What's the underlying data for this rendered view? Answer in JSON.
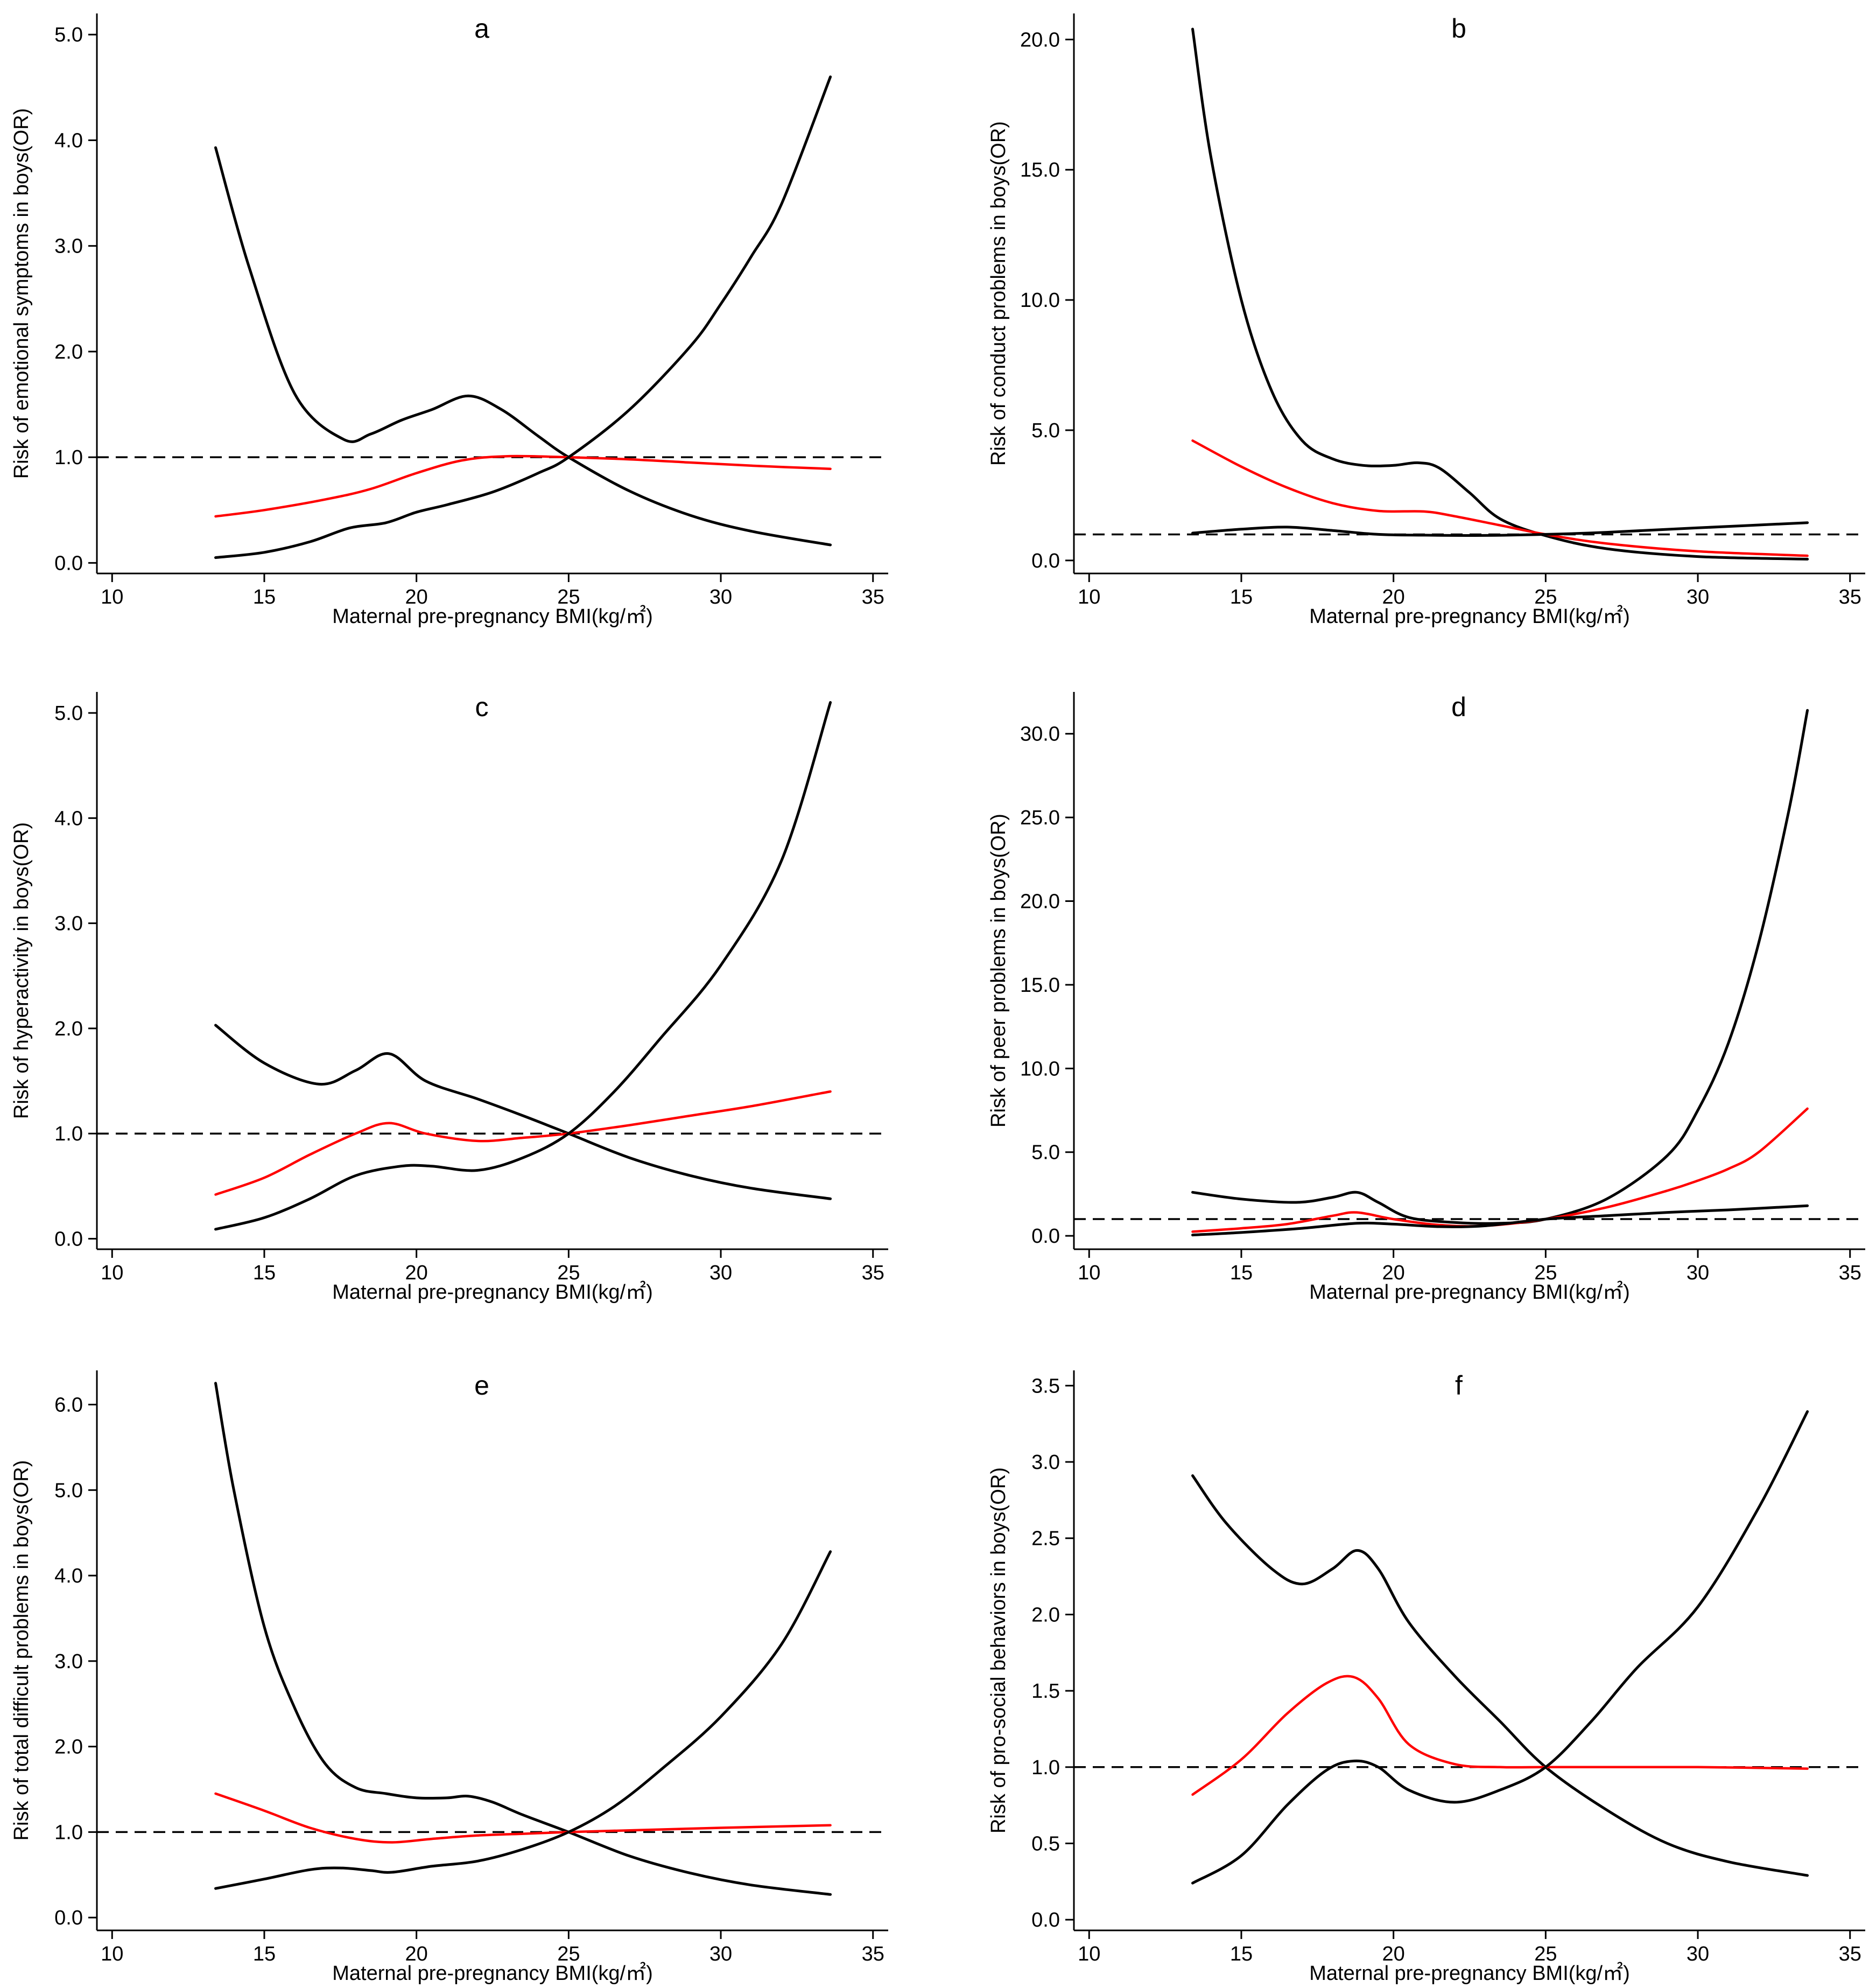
{
  "figure": {
    "colors": {
      "ci": "#000000",
      "or": "#ff0000",
      "reference": "#000000"
    }
  },
  "chart_data": [
    {
      "type": "line",
      "panel_label": "a",
      "xlabel": "Maternal pre-pregnancy BMI(kg/㎡)",
      "ylabel": "Risk of emotional symptoms in boys(OR)",
      "xlim": [
        9.5,
        35.5
      ],
      "ylim": [
        -0.1,
        5.2
      ],
      "xticks": [
        10,
        15,
        20,
        25,
        30,
        35
      ],
      "xtick_labels": [
        "10",
        "15",
        "20",
        "25",
        "30",
        "35"
      ],
      "yticks": [
        0,
        1,
        2,
        3,
        4,
        5
      ],
      "ytick_labels": [
        "0.0",
        "1.0",
        "2.0",
        "3.0",
        "4.0",
        "5.0"
      ],
      "reference_line": 1.0,
      "series": [
        {
          "role": "upper_ci",
          "color": "#000000",
          "x": [
            13.4,
            14.5,
            16,
            17.6,
            18.5,
            19.5,
            20.5,
            21.7,
            22.8,
            24,
            25,
            27,
            29,
            31,
            33.6
          ],
          "y": [
            3.93,
            2.8,
            1.6,
            1.17,
            1.22,
            1.35,
            1.45,
            1.58,
            1.45,
            1.2,
            1.0,
            0.68,
            0.45,
            0.3,
            0.17
          ]
        },
        {
          "role": "odds_ratio",
          "color": "#ff0000",
          "x": [
            13.4,
            15,
            17,
            18.5,
            20,
            21.5,
            23,
            25,
            27,
            29,
            31,
            33.6
          ],
          "y": [
            0.44,
            0.5,
            0.6,
            0.7,
            0.85,
            0.97,
            1.01,
            1.0,
            0.98,
            0.95,
            0.92,
            0.89
          ]
        },
        {
          "role": "lower_ci",
          "color": "#000000",
          "x": [
            13.4,
            15,
            16.5,
            17.8,
            19,
            20,
            21,
            22.5,
            24,
            25,
            27,
            29,
            30,
            31,
            32,
            33.6
          ],
          "y": [
            0.05,
            0.1,
            0.2,
            0.33,
            0.38,
            0.48,
            0.55,
            0.67,
            0.85,
            1.0,
            1.45,
            2.05,
            2.45,
            2.9,
            3.4,
            4.6
          ]
        }
      ]
    },
    {
      "type": "line",
      "panel_label": "b",
      "xlabel": "Maternal pre-pregnancy BMI(kg/㎡)",
      "ylabel": "Risk of conduct problems in boys(OR)",
      "xlim": [
        9.5,
        35.5
      ],
      "ylim": [
        -0.5,
        21.0
      ],
      "xticks": [
        10,
        15,
        20,
        25,
        30,
        35
      ],
      "xtick_labels": [
        "10",
        "15",
        "20",
        "25",
        "30",
        "35"
      ],
      "yticks": [
        0,
        5,
        10,
        15,
        20
      ],
      "ytick_labels": [
        "0.0",
        "5.0",
        "10.0",
        "15.0",
        "20.0"
      ],
      "reference_line": 1.0,
      "series": [
        {
          "role": "upper_ci",
          "color": "#000000",
          "x": [
            13.4,
            14,
            15,
            16,
            17,
            18,
            19,
            20,
            20.8,
            21.5,
            22.5,
            23.5,
            25,
            27,
            30,
            33.6
          ],
          "y": [
            20.4,
            15.5,
            10.0,
            6.5,
            4.6,
            3.9,
            3.65,
            3.65,
            3.75,
            3.55,
            2.6,
            1.6,
            0.95,
            0.45,
            0.15,
            0.05
          ]
        },
        {
          "role": "odds_ratio",
          "color": "#ff0000",
          "x": [
            13.4,
            15,
            16.5,
            18,
            19.5,
            21,
            22,
            23.5,
            25,
            27,
            30,
            33.6
          ],
          "y": [
            4.6,
            3.6,
            2.8,
            2.2,
            1.9,
            1.88,
            1.7,
            1.35,
            1.0,
            0.65,
            0.35,
            0.18
          ]
        },
        {
          "role": "lower_ci",
          "color": "#000000",
          "x": [
            13.4,
            15,
            16.5,
            18,
            19.5,
            21,
            23,
            25,
            27,
            30,
            33.6
          ],
          "y": [
            1.05,
            1.2,
            1.28,
            1.15,
            1.0,
            0.97,
            0.96,
            1.0,
            1.08,
            1.25,
            1.45
          ]
        }
      ]
    },
    {
      "type": "line",
      "panel_label": "c",
      "xlabel": "Maternal pre-pregnancy BMI(kg/㎡)",
      "ylabel": "Risk of hyperactivity in boys(OR)",
      "xlim": [
        9.5,
        35.5
      ],
      "ylim": [
        -0.1,
        5.2
      ],
      "xticks": [
        10,
        15,
        20,
        25,
        30,
        35
      ],
      "xtick_labels": [
        "10",
        "15",
        "20",
        "25",
        "30",
        "35"
      ],
      "yticks": [
        0,
        1,
        2,
        3,
        4,
        5
      ],
      "ytick_labels": [
        "0.0",
        "1.0",
        "2.0",
        "3.0",
        "4.0",
        "5.0"
      ],
      "reference_line": 1.0,
      "series": [
        {
          "role": "upper_ci",
          "color": "#000000",
          "x": [
            13.4,
            15,
            16.8,
            18,
            19.1,
            20.3,
            22,
            23.5,
            25,
            27,
            29,
            31,
            33.6
          ],
          "y": [
            2.03,
            1.67,
            1.47,
            1.6,
            1.76,
            1.5,
            1.33,
            1.17,
            1.0,
            0.77,
            0.6,
            0.48,
            0.38
          ]
        },
        {
          "role": "odds_ratio",
          "color": "#ff0000",
          "x": [
            13.4,
            15,
            16.5,
            18,
            19.1,
            20.3,
            22,
            23.5,
            25,
            27,
            29,
            31,
            33.6
          ],
          "y": [
            0.42,
            0.58,
            0.8,
            1.0,
            1.1,
            1.0,
            0.93,
            0.96,
            1.0,
            1.08,
            1.17,
            1.26,
            1.4
          ]
        },
        {
          "role": "lower_ci",
          "color": "#000000",
          "x": [
            13.4,
            15,
            16.5,
            18,
            19.5,
            20.5,
            22,
            23.5,
            25,
            26.5,
            28,
            30,
            32,
            33.6
          ],
          "y": [
            0.09,
            0.2,
            0.38,
            0.6,
            0.69,
            0.69,
            0.65,
            0.77,
            1.0,
            1.4,
            1.9,
            2.6,
            3.6,
            5.1
          ]
        }
      ]
    },
    {
      "type": "line",
      "panel_label": "d",
      "xlabel": "Maternal pre-pregnancy BMI(kg/㎡)",
      "ylabel": "Risk of peer problems in boys(OR)",
      "xlim": [
        9.5,
        35.5
      ],
      "ylim": [
        -0.8,
        32.5
      ],
      "xticks": [
        10,
        15,
        20,
        25,
        30,
        35
      ],
      "xtick_labels": [
        "10",
        "15",
        "20",
        "25",
        "30",
        "35"
      ],
      "yticks": [
        0,
        5,
        10,
        15,
        20,
        25,
        30
      ],
      "ytick_labels": [
        "0.0",
        "5.0",
        "10.0",
        "15.0",
        "20.0",
        "25.0",
        "30.0"
      ],
      "reference_line": 1.0,
      "series": [
        {
          "role": "upper_ci",
          "color": "#000000",
          "x": [
            13.4,
            15,
            16.8,
            18,
            18.8,
            19.5,
            20.5,
            22,
            23.5,
            25,
            27,
            29,
            30,
            31,
            32,
            33,
            33.6
          ],
          "y": [
            2.6,
            2.2,
            2.0,
            2.3,
            2.6,
            2.0,
            1.1,
            0.8,
            0.75,
            1.0,
            2.2,
            4.8,
            7.5,
            11.5,
            17.5,
            25.5,
            31.4
          ]
        },
        {
          "role": "odds_ratio",
          "color": "#ff0000",
          "x": [
            13.4,
            15,
            16.5,
            18,
            18.8,
            20,
            21.5,
            23,
            25,
            27,
            29,
            30,
            31,
            32,
            33.6
          ],
          "y": [
            0.25,
            0.45,
            0.7,
            1.2,
            1.4,
            1.0,
            0.65,
            0.6,
            1.0,
            1.7,
            2.7,
            3.3,
            4.0,
            5.0,
            7.6
          ]
        },
        {
          "role": "lower_ci",
          "color": "#000000",
          "x": [
            13.4,
            15,
            17,
            18.8,
            20,
            21.5,
            23,
            25,
            27,
            29,
            31,
            33.6
          ],
          "y": [
            0.05,
            0.2,
            0.45,
            0.75,
            0.7,
            0.55,
            0.6,
            1.0,
            1.2,
            1.4,
            1.55,
            1.8
          ]
        }
      ]
    },
    {
      "type": "line",
      "panel_label": "e",
      "xlabel": "Maternal pre-pregnancy BMI(kg/㎡)",
      "ylabel": "Risk of total difficult problems in boys(OR)",
      "xlim": [
        9.5,
        35.5
      ],
      "ylim": [
        -0.15,
        6.4
      ],
      "xticks": [
        10,
        15,
        20,
        25,
        30,
        35
      ],
      "xtick_labels": [
        "10",
        "15",
        "20",
        "25",
        "30",
        "35"
      ],
      "yticks": [
        0,
        1,
        2,
        3,
        4,
        5,
        6
      ],
      "ytick_labels": [
        "0.0",
        "1.0",
        "2.0",
        "3.0",
        "4.0",
        "5.0",
        "6.0"
      ],
      "reference_line": 1.0,
      "series": [
        {
          "role": "upper_ci",
          "color": "#000000",
          "x": [
            13.4,
            14,
            15,
            16,
            17,
            18,
            19,
            20,
            21,
            21.7,
            22.5,
            23.5,
            25,
            27,
            29,
            31,
            33.6
          ],
          "y": [
            6.25,
            5.0,
            3.4,
            2.45,
            1.8,
            1.52,
            1.45,
            1.4,
            1.4,
            1.42,
            1.35,
            1.2,
            1.0,
            0.72,
            0.52,
            0.38,
            0.27
          ]
        },
        {
          "role": "odds_ratio",
          "color": "#ff0000",
          "x": [
            13.4,
            15,
            16.5,
            18,
            19.2,
            20.5,
            22,
            23.5,
            25,
            27,
            30,
            33.6
          ],
          "y": [
            1.45,
            1.25,
            1.05,
            0.92,
            0.88,
            0.92,
            0.96,
            0.98,
            1.0,
            1.02,
            1.05,
            1.08
          ]
        },
        {
          "role": "lower_ci",
          "color": "#000000",
          "x": [
            13.4,
            15,
            16.5,
            17.5,
            18.5,
            19.2,
            20.5,
            22,
            23.5,
            25,
            26.5,
            28,
            30,
            32,
            33.6
          ],
          "y": [
            0.34,
            0.45,
            0.56,
            0.58,
            0.55,
            0.53,
            0.6,
            0.66,
            0.8,
            1.0,
            1.3,
            1.72,
            2.35,
            3.2,
            4.28
          ]
        }
      ]
    },
    {
      "type": "line",
      "panel_label": "f",
      "xlabel": "Maternal pre-pregnancy BMI(kg/㎡)",
      "ylabel": "Risk of pro-social behaviors in boys(OR)",
      "xlim": [
        9.5,
        35.5
      ],
      "ylim": [
        -0.07,
        3.6
      ],
      "xticks": [
        10,
        15,
        20,
        25,
        30,
        35
      ],
      "xtick_labels": [
        "10",
        "15",
        "20",
        "25",
        "30",
        "35"
      ],
      "yticks": [
        0,
        0.5,
        1,
        1.5,
        2,
        2.5,
        3,
        3.5
      ],
      "ytick_labels": [
        "0.0",
        "0.5",
        "1.0",
        "1.5",
        "2.0",
        "2.5",
        "3.0",
        "3.5"
      ],
      "reference_line": 1.0,
      "series": [
        {
          "role": "upper_ci",
          "color": "#000000",
          "x": [
            13.4,
            14.5,
            16,
            17,
            18,
            18.8,
            19.5,
            20.5,
            22,
            23.5,
            25,
            27,
            29,
            31,
            33.6
          ],
          "y": [
            2.91,
            2.6,
            2.3,
            2.2,
            2.3,
            2.42,
            2.3,
            1.95,
            1.6,
            1.3,
            1.0,
            0.72,
            0.5,
            0.38,
            0.29
          ]
        },
        {
          "role": "odds_ratio",
          "color": "#ff0000",
          "x": [
            13.4,
            15,
            16.5,
            17.8,
            18.7,
            19.5,
            20.5,
            22,
            23.5,
            25,
            27,
            30,
            33.6
          ],
          "y": [
            0.82,
            1.05,
            1.35,
            1.55,
            1.59,
            1.45,
            1.15,
            1.02,
            1.0,
            1.0,
            1.0,
            1.0,
            0.99
          ]
        },
        {
          "role": "lower_ci",
          "color": "#000000",
          "x": [
            13.4,
            15,
            16.5,
            17.8,
            18.7,
            19.5,
            20.5,
            22,
            23.5,
            25,
            26.5,
            28,
            30,
            32,
            33.6
          ],
          "y": [
            0.24,
            0.42,
            0.75,
            0.98,
            1.04,
            1.0,
            0.85,
            0.77,
            0.85,
            1.0,
            1.3,
            1.65,
            2.05,
            2.7,
            3.33
          ]
        }
      ]
    }
  ]
}
